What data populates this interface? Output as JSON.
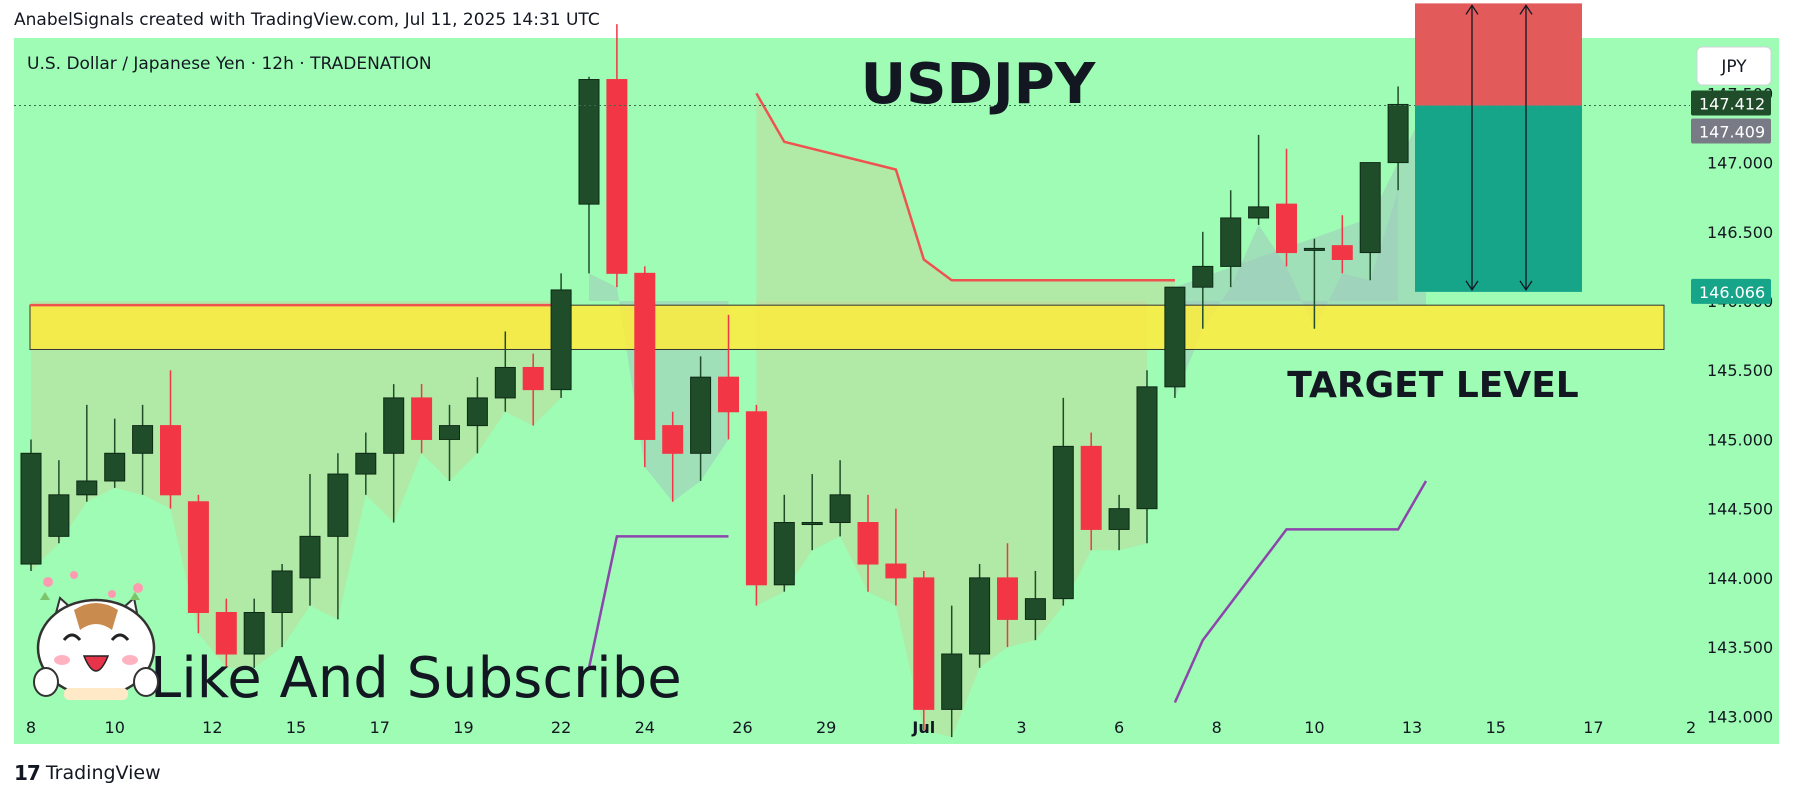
{
  "header": {
    "attribution": "AnabelSignals created with TradingView.com, Jul 11, 2025 14:31 UTC"
  },
  "footer": {
    "brand": "TradingView",
    "logo": "tradingview-logo"
  },
  "colors": {
    "background": "#9efcb4",
    "bull": "#1f4d2a",
    "bear": "#f23645",
    "zone": "#ffeb3b",
    "stop": "#e35a5a",
    "target": "#17a589",
    "upper_line": "#ef5350",
    "lower_line": "#8e44ad"
  },
  "chart_data": {
    "type": "candlestick",
    "symbol_description": "U.S. Dollar / Japanese Yen · 12h · TRADENATION",
    "title": "USDJPY",
    "currency": "JPY",
    "ylim": [
      142.8,
      147.9
    ],
    "y_ticks": [
      "143.000",
      "143.500",
      "144.000",
      "144.500",
      "145.000",
      "145.500",
      "146.000",
      "146.500",
      "147.000",
      "147.500"
    ],
    "x_ticks": [
      "8",
      "10",
      "12",
      "15",
      "17",
      "19",
      "22",
      "24",
      "26",
      "29",
      "Jul",
      "3",
      "6",
      "8",
      "10",
      "13",
      "15",
      "17",
      "2"
    ],
    "price_labels": [
      "147.412",
      "147.409",
      "146.066"
    ],
    "annotations": [
      "TARGET LEVEL",
      "Like And Subscribe"
    ],
    "zone": {
      "label": "TARGET LEVEL",
      "low": 145.65,
      "high": 145.97
    },
    "position": {
      "entry": 147.412,
      "stop": 148.15,
      "target": 146.066
    },
    "grid": false,
    "candles": [
      {
        "o": 144.1,
        "h": 145.0,
        "l": 144.05,
        "c": 144.9
      },
      {
        "o": 144.3,
        "h": 144.85,
        "l": 144.25,
        "c": 144.6
      },
      {
        "o": 144.6,
        "h": 145.25,
        "l": 144.55,
        "c": 144.7
      },
      {
        "o": 144.7,
        "h": 145.15,
        "l": 144.65,
        "c": 144.9
      },
      {
        "o": 144.9,
        "h": 145.25,
        "l": 144.6,
        "c": 145.1
      },
      {
        "o": 145.1,
        "h": 145.5,
        "l": 144.5,
        "c": 144.6
      },
      {
        "o": 144.55,
        "h": 144.6,
        "l": 143.6,
        "c": 143.75
      },
      {
        "o": 143.75,
        "h": 143.85,
        "l": 143.35,
        "c": 143.45
      },
      {
        "o": 143.45,
        "h": 143.85,
        "l": 143.35,
        "c": 143.75
      },
      {
        "o": 143.75,
        "h": 144.1,
        "l": 143.5,
        "c": 144.05
      },
      {
        "o": 144.0,
        "h": 144.75,
        "l": 143.8,
        "c": 144.3
      },
      {
        "o": 144.3,
        "h": 144.9,
        "l": 143.7,
        "c": 144.75
      },
      {
        "o": 144.75,
        "h": 145.05,
        "l": 144.6,
        "c": 144.9
      },
      {
        "o": 144.9,
        "h": 145.4,
        "l": 144.4,
        "c": 145.3
      },
      {
        "o": 145.3,
        "h": 145.4,
        "l": 144.9,
        "c": 145.0
      },
      {
        "o": 145.0,
        "h": 145.25,
        "l": 144.7,
        "c": 145.1
      },
      {
        "o": 145.1,
        "h": 145.45,
        "l": 144.9,
        "c": 145.3
      },
      {
        "o": 145.3,
        "h": 145.78,
        "l": 145.2,
        "c": 145.52
      },
      {
        "o": 145.52,
        "h": 145.62,
        "l": 145.1,
        "c": 145.36
      },
      {
        "o": 145.36,
        "h": 146.2,
        "l": 145.3,
        "c": 146.08
      },
      {
        "o": 146.7,
        "h": 147.62,
        "l": 146.2,
        "c": 147.6
      },
      {
        "o": 147.6,
        "h": 148.0,
        "l": 146.1,
        "c": 146.2
      },
      {
        "o": 146.2,
        "h": 146.25,
        "l": 144.8,
        "c": 145.0
      },
      {
        "o": 145.1,
        "h": 145.2,
        "l": 144.55,
        "c": 144.9
      },
      {
        "o": 144.9,
        "h": 145.6,
        "l": 144.7,
        "c": 145.45
      },
      {
        "o": 145.45,
        "h": 145.9,
        "l": 145.0,
        "c": 145.2
      },
      {
        "o": 145.2,
        "h": 145.25,
        "l": 143.8,
        "c": 143.95
      },
      {
        "o": 143.95,
        "h": 144.6,
        "l": 143.9,
        "c": 144.4
      },
      {
        "o": 144.4,
        "h": 144.75,
        "l": 144.2,
        "c": 144.4
      },
      {
        "o": 144.4,
        "h": 144.85,
        "l": 144.3,
        "c": 144.6
      },
      {
        "o": 144.4,
        "h": 144.6,
        "l": 143.9,
        "c": 144.1
      },
      {
        "o": 144.1,
        "h": 144.5,
        "l": 143.8,
        "c": 144.0
      },
      {
        "o": 144.0,
        "h": 144.05,
        "l": 142.9,
        "c": 143.05
      },
      {
        "o": 143.05,
        "h": 143.8,
        "l": 142.85,
        "c": 143.45
      },
      {
        "o": 143.45,
        "h": 144.1,
        "l": 143.35,
        "c": 144.0
      },
      {
        "o": 144.0,
        "h": 144.25,
        "l": 143.5,
        "c": 143.7
      },
      {
        "o": 143.7,
        "h": 144.05,
        "l": 143.55,
        "c": 143.85
      },
      {
        "o": 143.85,
        "h": 145.3,
        "l": 143.8,
        "c": 144.95
      },
      {
        "o": 144.95,
        "h": 145.05,
        "l": 144.2,
        "c": 144.35
      },
      {
        "o": 144.35,
        "h": 144.6,
        "l": 144.2,
        "c": 144.5
      },
      {
        "o": 144.5,
        "h": 145.5,
        "l": 144.25,
        "c": 145.38
      },
      {
        "o": 145.38,
        "h": 146.08,
        "l": 145.3,
        "c": 146.1
      },
      {
        "o": 146.1,
        "h": 146.5,
        "l": 145.8,
        "c": 146.25
      },
      {
        "o": 146.25,
        "h": 146.8,
        "l": 146.1,
        "c": 146.6
      },
      {
        "o": 146.6,
        "h": 147.2,
        "l": 146.55,
        "c": 146.68
      },
      {
        "o": 146.7,
        "h": 147.1,
        "l": 146.25,
        "c": 146.35
      },
      {
        "o": 146.38,
        "h": 146.45,
        "l": 145.8,
        "c": 146.38
      },
      {
        "o": 146.4,
        "h": 146.62,
        "l": 146.2,
        "c": 146.3
      },
      {
        "o": 146.35,
        "h": 147.0,
        "l": 146.15,
        "c": 147.0
      },
      {
        "o": 147.0,
        "h": 147.55,
        "l": 146.8,
        "c": 147.42
      }
    ],
    "overlays": {
      "upper_line": [
        {
          "i": 19,
          "y": 145.97
        },
        {
          "i": -1,
          "y": 145.97
        }
      ],
      "upper_step": [
        {
          "i": 26,
          "y": 147.5
        },
        {
          "i": 27,
          "y": 147.15
        },
        {
          "i": 31,
          "y": 146.95
        },
        {
          "i": 32,
          "y": 146.3
        },
        {
          "i": 33,
          "y": 146.15
        },
        {
          "i": 41,
          "y": 146.15
        }
      ],
      "lower_step_1": [
        {
          "i": 20,
          "y": 143.35
        },
        {
          "i": 21,
          "y": 144.3
        },
        {
          "i": 25,
          "y": 144.3
        }
      ],
      "lower_step_2": [
        {
          "i": 41,
          "y": 143.1
        },
        {
          "i": 42,
          "y": 143.55
        },
        {
          "i": 45,
          "y": 144.35
        },
        {
          "i": 49,
          "y": 144.35
        },
        {
          "i": 50,
          "y": 144.7
        }
      ]
    }
  }
}
